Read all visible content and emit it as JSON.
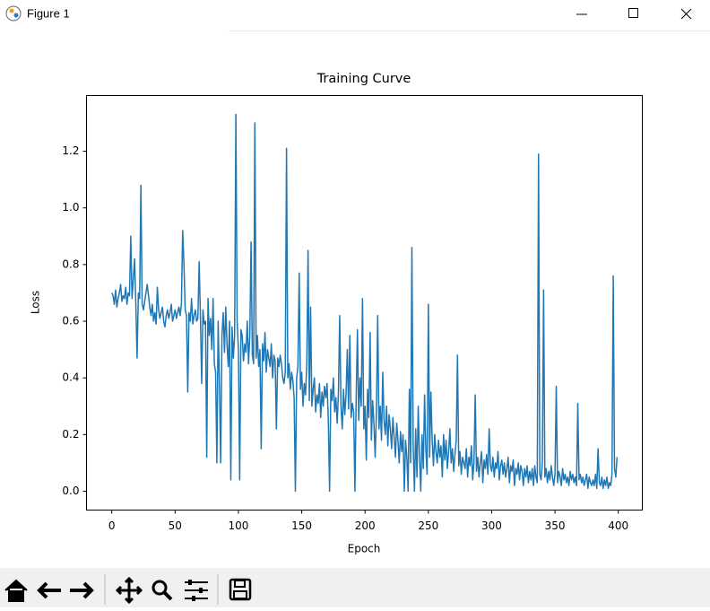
{
  "window": {
    "title": "Figure 1"
  },
  "chart_data": {
    "type": "line",
    "title": "Training Curve",
    "x_label": "Epoch",
    "y_label": "Loss",
    "color": "#1f77b4",
    "xlim": [
      -19.95,
      418.95
    ],
    "ylim": [
      -0.0665,
      1.3965
    ],
    "xticks": [
      0,
      50,
      100,
      150,
      200,
      250,
      300,
      350,
      400
    ],
    "yticks": [
      {
        "value": 0,
        "label": "0.0"
      },
      0.2,
      0.4,
      0.6,
      0.8,
      {
        "value": 1,
        "label": "1.0"
      },
      1.2
    ],
    "x": [
      0,
      1,
      2,
      3,
      4,
      5,
      6,
      7,
      8,
      9,
      10,
      11,
      12,
      13,
      14,
      15,
      16,
      17,
      18,
      19,
      20,
      21,
      22,
      23,
      24,
      25,
      26,
      27,
      28,
      29,
      30,
      31,
      32,
      33,
      34,
      35,
      36,
      37,
      38,
      39,
      40,
      41,
      42,
      43,
      44,
      45,
      46,
      47,
      48,
      49,
      50,
      51,
      52,
      53,
      54,
      55,
      56,
      57,
      58,
      59,
      60,
      61,
      62,
      63,
      64,
      65,
      66,
      67,
      68,
      69,
      70,
      71,
      72,
      73,
      74,
      75,
      76,
      77,
      78,
      79,
      80,
      81,
      82,
      83,
      84,
      85,
      86,
      87,
      88,
      89,
      90,
      91,
      92,
      93,
      94,
      95,
      96,
      97,
      98,
      99,
      100,
      101,
      102,
      103,
      104,
      105,
      106,
      107,
      108,
      109,
      110,
      111,
      112,
      113,
      114,
      115,
      116,
      117,
      118,
      119,
      120,
      121,
      122,
      123,
      124,
      125,
      126,
      127,
      128,
      129,
      130,
      131,
      132,
      133,
      134,
      135,
      136,
      137,
      138,
      139,
      140,
      141,
      142,
      143,
      144,
      145,
      146,
      147,
      148,
      149,
      150,
      151,
      152,
      153,
      154,
      155,
      156,
      157,
      158,
      159,
      160,
      161,
      162,
      163,
      164,
      165,
      166,
      167,
      168,
      169,
      170,
      171,
      172,
      173,
      174,
      175,
      176,
      177,
      178,
      179,
      180,
      181,
      182,
      183,
      184,
      185,
      186,
      187,
      188,
      189,
      190,
      191,
      192,
      193,
      194,
      195,
      196,
      197,
      198,
      199,
      200,
      201,
      202,
      203,
      204,
      205,
      206,
      207,
      208,
      209,
      210,
      211,
      212,
      213,
      214,
      215,
      216,
      217,
      218,
      219,
      220,
      221,
      222,
      223,
      224,
      225,
      226,
      227,
      228,
      229,
      230,
      231,
      232,
      233,
      234,
      235,
      236,
      237,
      238,
      239,
      240,
      241,
      242,
      243,
      244,
      245,
      246,
      247,
      248,
      249,
      250,
      251,
      252,
      253,
      254,
      255,
      256,
      257,
      258,
      259,
      260,
      261,
      262,
      263,
      264,
      265,
      266,
      267,
      268,
      269,
      270,
      271,
      272,
      273,
      274,
      275,
      276,
      277,
      278,
      279,
      280,
      281,
      282,
      283,
      284,
      285,
      286,
      287,
      288,
      289,
      290,
      291,
      292,
      293,
      294,
      295,
      296,
      297,
      298,
      299,
      300,
      301,
      302,
      303,
      304,
      305,
      306,
      307,
      308,
      309,
      310,
      311,
      312,
      313,
      314,
      315,
      316,
      317,
      318,
      319,
      320,
      321,
      322,
      323,
      324,
      325,
      326,
      327,
      328,
      329,
      330,
      331,
      332,
      333,
      334,
      335,
      336,
      337,
      338,
      339,
      340,
      341,
      342,
      343,
      344,
      345,
      346,
      347,
      348,
      349,
      350,
      351,
      352,
      353,
      354,
      355,
      356,
      357,
      358,
      359,
      360,
      361,
      362,
      363,
      364,
      365,
      366,
      367,
      368,
      369,
      370,
      371,
      372,
      373,
      374,
      375,
      376,
      377,
      378,
      379,
      380,
      381,
      382,
      383,
      384,
      385,
      386,
      387,
      388,
      389,
      390,
      391,
      392,
      393,
      394,
      395,
      396,
      397,
      398,
      399
    ],
    "values": [
      0.7,
      0.69,
      0.66,
      0.71,
      0.65,
      0.68,
      0.7,
      0.73,
      0.67,
      0.69,
      0.68,
      0.72,
      0.66,
      0.7,
      0.69,
      0.9,
      0.68,
      0.75,
      0.82,
      0.66,
      0.47,
      0.7,
      0.68,
      1.08,
      0.66,
      0.64,
      0.67,
      0.7,
      0.73,
      0.69,
      0.65,
      0.62,
      0.66,
      0.6,
      0.63,
      0.59,
      0.72,
      0.64,
      0.61,
      0.63,
      0.65,
      0.6,
      0.58,
      0.62,
      0.64,
      0.61,
      0.63,
      0.66,
      0.6,
      0.62,
      0.64,
      0.61,
      0.63,
      0.65,
      0.62,
      0.66,
      0.92,
      0.8,
      0.64,
      0.62,
      0.35,
      0.63,
      0.6,
      0.68,
      0.59,
      0.62,
      0.64,
      0.6,
      0.61,
      0.81,
      0.62,
      0.38,
      0.64,
      0.59,
      0.6,
      0.12,
      0.68,
      0.55,
      0.61,
      0.5,
      0.68,
      0.45,
      0.42,
      0.1,
      0.6,
      0.38,
      0.1,
      0.55,
      0.63,
      0.49,
      0.65,
      0.52,
      0.44,
      0.6,
      0.04,
      0.58,
      0.47,
      0.55,
      1.33,
      0.6,
      0.5,
      0.04,
      0.57,
      0.55,
      0.46,
      0.52,
      0.49,
      0.6,
      0.45,
      0.55,
      0.88,
      0.48,
      0.45,
      1.3,
      0.47,
      0.55,
      0.44,
      0.5,
      0.15,
      0.52,
      0.46,
      0.56,
      0.42,
      0.5,
      0.47,
      0.44,
      0.52,
      0.4,
      0.48,
      0.46,
      0.22,
      0.47,
      0.44,
      0.48,
      0.45,
      0.4,
      0.38,
      0.42,
      1.21,
      0.4,
      0.45,
      0.36,
      0.42,
      0.39,
      0.33,
      0.0,
      0.4,
      0.44,
      0.77,
      0.36,
      0.42,
      0.3,
      0.38,
      0.34,
      0.45,
      0.85,
      0.32,
      0.65,
      0.3,
      0.36,
      0.4,
      0.28,
      0.34,
      0.31,
      0.38,
      0.26,
      0.35,
      0.3,
      0.37,
      0.33,
      0.38,
      0.25,
      0.0,
      0.36,
      0.32,
      0.4,
      0.28,
      0.33,
      0.24,
      0.35,
      0.62,
      0.3,
      0.22,
      0.36,
      0.27,
      0.34,
      0.5,
      0.29,
      0.55,
      0.26,
      0.31,
      0.28,
      0.0,
      0.33,
      0.57,
      0.25,
      0.4,
      0.3,
      0.68,
      0.22,
      0.3,
      0.11,
      0.36,
      0.26,
      0.56,
      0.18,
      0.32,
      0.24,
      0.12,
      0.28,
      0.62,
      0.22,
      0.3,
      0.18,
      0.42,
      0.25,
      0.2,
      0.3,
      0.16,
      0.27,
      0.22,
      0.15,
      0.26,
      0.19,
      0.12,
      0.24,
      0.18,
      0.1,
      0.21,
      0.14,
      0.2,
      0.0,
      0.18,
      0.12,
      0.0,
      0.36,
      0.1,
      0.86,
      0.16,
      0.0,
      0.22,
      0.05,
      0.3,
      0.12,
      0.0,
      0.2,
      0.08,
      0.34,
      0.15,
      0.06,
      0.66,
      0.12,
      0.35,
      0.18,
      0.09,
      0.2,
      0.14,
      0.1,
      0.18,
      0.12,
      0.16,
      0.05,
      0.2,
      0.11,
      0.18,
      0.08,
      0.14,
      0.22,
      0.1,
      0.15,
      0.07,
      0.13,
      0.18,
      0.48,
      0.09,
      0.14,
      0.06,
      0.12,
      0.1,
      0.08,
      0.15,
      0.05,
      0.12,
      0.09,
      0.16,
      0.04,
      0.1,
      0.34,
      0.07,
      0.12,
      0.05,
      0.1,
      0.14,
      0.03,
      0.11,
      0.08,
      0.13,
      0.06,
      0.22,
      0.09,
      0.07,
      0.12,
      0.05,
      0.1,
      0.08,
      0.14,
      0.04,
      0.09,
      0.11,
      0.06,
      0.1,
      0.05,
      0.08,
      0.12,
      0.03,
      0.09,
      0.07,
      0.11,
      0.02,
      0.08,
      0.06,
      0.1,
      0.04,
      0.09,
      0.07,
      0.02,
      0.08,
      0.05,
      0.09,
      0.03,
      0.07,
      0.04,
      0.08,
      0.02,
      0.09,
      0.05,
      0.03,
      1.19,
      0.06,
      0.04,
      0.1,
      0.71,
      0.05,
      0.08,
      0.03,
      0.07,
      0.04,
      0.09,
      0.05,
      0.02,
      0.06,
      0.37,
      0.03,
      0.07,
      0.05,
      0.02,
      0.08,
      0.04,
      0.06,
      0.03,
      0.05,
      0.02,
      0.07,
      0.04,
      0.06,
      0.03,
      0.05,
      0.02,
      0.31,
      0.04,
      0.06,
      0.03,
      0.05,
      0.02,
      0.04,
      0.06,
      0.01,
      0.05,
      0.03,
      0.02,
      0.04,
      0.02,
      0.06,
      0.01,
      0.15,
      0.03,
      0.02,
      0.05,
      0.01,
      0.04,
      0.02,
      0.05,
      0.01,
      0.03,
      0.02,
      0.06,
      0.76,
      0.08,
      0.05,
      0.12
    ]
  }
}
